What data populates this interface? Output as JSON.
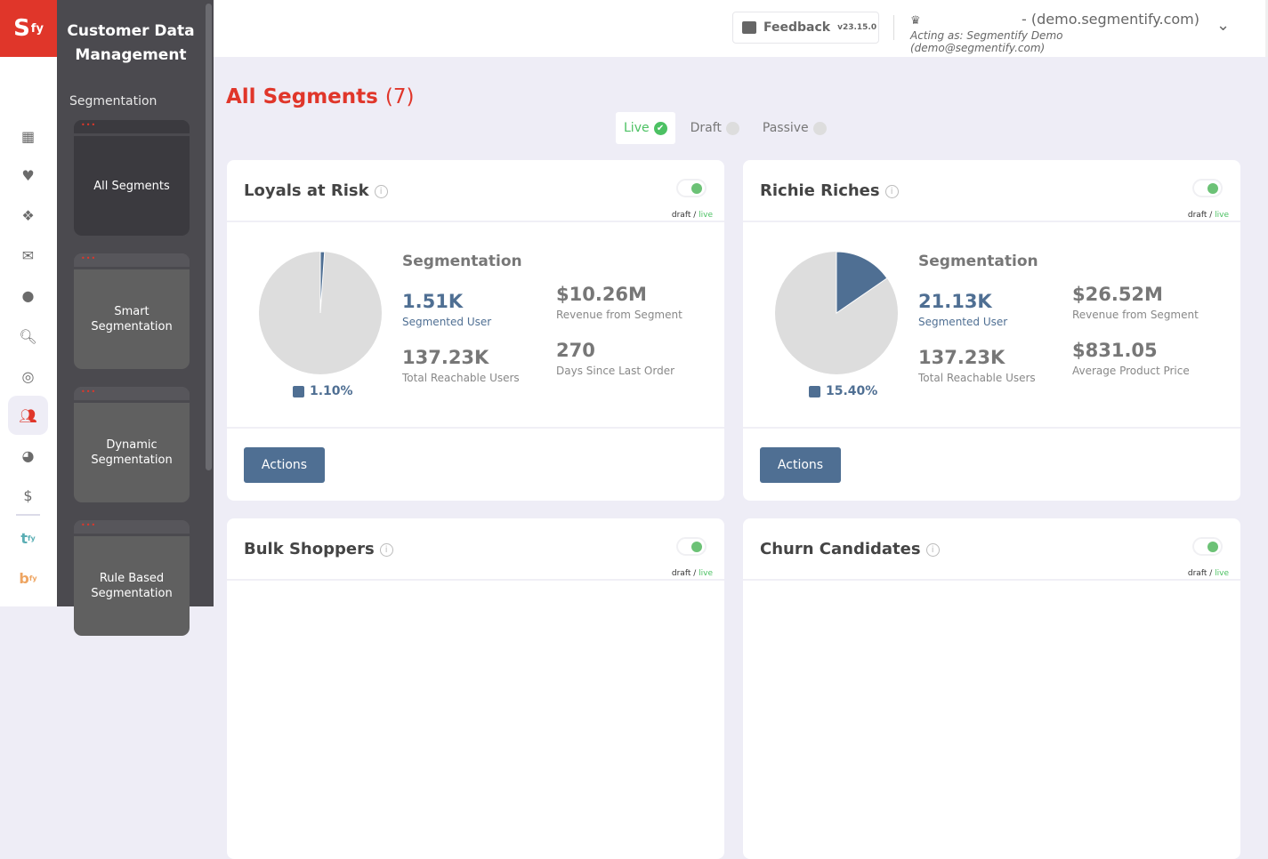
{
  "logo": {
    "main": "S",
    "sup": "fy"
  },
  "rail": {
    "items": [
      "dashboard-icon",
      "heart-icon",
      "boxes-icon",
      "mail-icon",
      "bubble-icon",
      "search-icon",
      "target-icon",
      "users-icon",
      "pie-icon",
      "dollar-icon"
    ],
    "tfy": {
      "main": "t",
      "sup": "fy"
    },
    "bfy": {
      "main": "b",
      "sup": "fy"
    }
  },
  "panel": {
    "title": "Customer Data Management",
    "section": "Segmentation",
    "cards": [
      {
        "label": "All Segments"
      },
      {
        "label": "Smart Segmentation"
      },
      {
        "label": "Dynamic Segmentation"
      },
      {
        "label": "Rule Based Segmentation"
      }
    ]
  },
  "header": {
    "feedback": "Feedback",
    "version": "v23.15.0",
    "domain": "- (demo.segmentify.com)",
    "acting_as": "Acting as: Segmentify Demo (demo@segmentify.com)"
  },
  "page": {
    "title": "All Segments",
    "count": "(7)"
  },
  "tabs": [
    {
      "label": "Live"
    },
    {
      "label": "Draft"
    },
    {
      "label": "Passive"
    }
  ],
  "colors": {
    "accent": "#e0362a",
    "segment": "#4f6f93",
    "live": "#4cc163",
    "rest": "#dddddd"
  },
  "cards": [
    {
      "title": "Loyals at Risk",
      "draft": "draft",
      "live": "live",
      "pct_value": 1.1,
      "pct": "1.10%",
      "seg_label": "Segmentation",
      "segmented": "1.51K",
      "segmented_label": "Segmented User",
      "reach": "137.23K",
      "reach_label": "Total Reachable Users",
      "m1": "$10.26M",
      "m1_label": "Revenue from Segment",
      "m2": "270",
      "m2_label": "Days Since Last Order",
      "actions": "Actions"
    },
    {
      "title": "Richie Riches",
      "draft": "draft",
      "live": "live",
      "pct_value": 15.4,
      "pct": "15.40%",
      "seg_label": "Segmentation",
      "segmented": "21.13K",
      "segmented_label": "Segmented User",
      "reach": "137.23K",
      "reach_label": "Total Reachable Users",
      "m1": "$26.52M",
      "m1_label": "Revenue from Segment",
      "m2": "$831.05",
      "m2_label": "Average Product Price",
      "actions": "Actions"
    },
    {
      "title": "Bulk Shoppers",
      "draft": "draft",
      "live": "live"
    },
    {
      "title": "Churn Candidates",
      "draft": "draft",
      "live": "live"
    }
  ]
}
